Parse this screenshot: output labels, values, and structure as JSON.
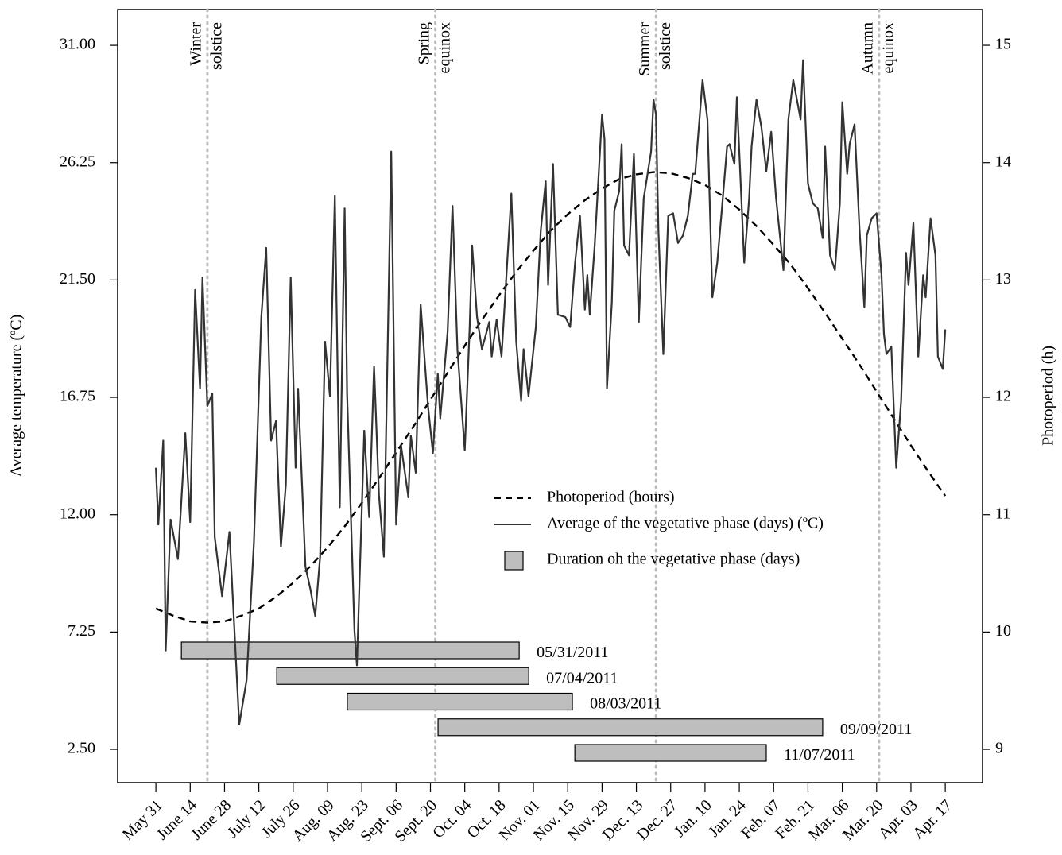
{
  "chart_data": {
    "type": "line",
    "ylabel": "Average temperature (ºC)",
    "y2label": "Photoperiod (h)",
    "xlim": [
      -15.6,
      337.2
    ],
    "xticks": [
      {
        "value": 0,
        "label": "May 31"
      },
      {
        "value": 14,
        "label": "June 14"
      },
      {
        "value": 28,
        "label": "June 28"
      },
      {
        "value": 42,
        "label": "July 12"
      },
      {
        "value": 56,
        "label": "July 26"
      },
      {
        "value": 70,
        "label": "Aug. 09"
      },
      {
        "value": 84,
        "label": "Aug. 23"
      },
      {
        "value": 98,
        "label": "Sept. 06"
      },
      {
        "value": 112,
        "label": "Sept. 20"
      },
      {
        "value": 126,
        "label": "Oct. 04"
      },
      {
        "value": 140,
        "label": "Oct. 18"
      },
      {
        "value": 154,
        "label": "Nov. 01"
      },
      {
        "value": 168,
        "label": "Nov. 15"
      },
      {
        "value": 182,
        "label": "Nov. 29"
      },
      {
        "value": 196,
        "label": "Dec. 13"
      },
      {
        "value": 210,
        "label": "Dec. 27"
      },
      {
        "value": 224,
        "label": "Jan. 10"
      },
      {
        "value": 238,
        "label": "Jan. 24"
      },
      {
        "value": 252,
        "label": "Feb. 07"
      },
      {
        "value": 266,
        "label": "Feb. 21"
      },
      {
        "value": 280,
        "label": "Mar. 06"
      },
      {
        "value": 294,
        "label": "Mar. 20"
      },
      {
        "value": 308,
        "label": "Apr. 03"
      },
      {
        "value": 322,
        "label": "Apr. 17"
      }
    ],
    "ylim": [
      1.15,
      32.45
    ],
    "yticks": [
      {
        "value": 2.5,
        "label": "2.50"
      },
      7.25,
      {
        "value": 12,
        "label": "12.00"
      },
      16.75,
      {
        "value": 21.5,
        "label": "21.50"
      },
      26.25,
      {
        "value": 31,
        "label": "31.00"
      }
    ],
    "y2lim": [
      8.716,
      15.305
    ],
    "y2ticks": [
      9,
      10,
      11,
      12,
      13,
      14,
      15
    ],
    "legend": "center",
    "series": [
      {
        "name": "Photoperiod (hours)",
        "color": "#000000",
        "linestyle": "dashed",
        "axis": "y2",
        "x": [
          0,
          7,
          14,
          21,
          28,
          35,
          42,
          49,
          56,
          63,
          70,
          77,
          84,
          91,
          98,
          105,
          112,
          119,
          126,
          133,
          140,
          147,
          154,
          161,
          168,
          175,
          182,
          189,
          196,
          203,
          210,
          217,
          224,
          231,
          238,
          245,
          252,
          259,
          266,
          273,
          280,
          287,
          294,
          301,
          308,
          315,
          322
        ],
        "values": [
          10.2,
          10.14,
          10.09,
          10.08,
          10.09,
          10.14,
          10.2,
          10.3,
          10.42,
          10.56,
          10.72,
          10.9,
          11.1,
          11.31,
          11.53,
          11.75,
          11.98,
          12.21,
          12.44,
          12.66,
          12.87,
          13.07,
          13.25,
          13.42,
          13.56,
          13.68,
          13.78,
          13.86,
          13.9,
          13.92,
          13.91,
          13.87,
          13.81,
          13.72,
          13.6,
          13.46,
          13.3,
          13.13,
          12.93,
          12.72,
          12.5,
          12.28,
          12.05,
          11.82,
          11.59,
          11.37,
          11.16
        ]
      },
      {
        "name": "Average of the vegetative phase (days) (ºC)",
        "color": "#333333",
        "linestyle": "solid",
        "x": [
          0,
          1,
          3,
          4,
          6,
          9,
          12,
          14,
          16,
          18,
          19,
          21,
          23,
          24,
          27,
          30,
          34,
          37,
          40,
          43,
          45,
          47,
          49,
          51,
          53,
          55,
          57,
          58,
          61,
          63,
          65,
          67,
          69,
          71,
          73,
          75,
          77,
          78,
          81,
          82,
          85,
          87,
          89,
          91,
          93,
          96,
          98,
          100,
          103,
          104,
          106,
          108,
          111,
          113,
          115,
          116,
          119,
          121,
          123,
          126,
          128,
          129,
          131,
          133,
          136,
          137,
          139,
          141,
          145,
          147,
          149,
          150,
          152,
          155,
          157,
          159,
          160,
          162,
          164,
          167,
          169,
          171,
          173,
          175,
          176,
          177,
          179,
          182,
          183,
          184,
          186,
          187,
          189,
          190,
          191,
          193,
          195,
          197,
          199,
          202,
          203,
          204,
          205,
          207,
          209,
          211,
          213,
          215,
          217,
          219,
          220,
          223,
          225,
          227,
          229,
          231,
          233,
          234,
          236,
          237,
          240,
          242,
          243,
          245,
          247,
          249,
          251,
          253,
          256,
          258,
          260,
          263,
          264,
          266,
          268,
          270,
          272,
          273,
          275,
          277,
          279,
          280,
          282,
          283,
          285,
          287,
          289,
          290,
          292,
          294,
          296,
          297,
          298,
          300,
          302,
          304,
          306,
          307,
          309,
          311,
          313,
          314,
          316,
          318,
          319,
          321,
          322
        ],
        "values": [
          13.9,
          11.6,
          15.0,
          6.5,
          11.8,
          10.2,
          15.3,
          11.7,
          21.1,
          17.1,
          21.6,
          16.4,
          16.9,
          11.1,
          8.7,
          11.3,
          3.5,
          5.3,
          10.9,
          20.0,
          22.8,
          15.0,
          15.8,
          10.7,
          13.2,
          21.6,
          13.9,
          17.1,
          9.9,
          9.0,
          7.9,
          10.3,
          19.0,
          16.8,
          24.9,
          12.3,
          24.4,
          16.9,
          7.3,
          5.9,
          15.4,
          11.9,
          18.0,
          12.8,
          10.3,
          26.7,
          11.6,
          14.8,
          12.7,
          15.2,
          13.7,
          20.5,
          16.4,
          14.5,
          17.7,
          15.9,
          19.4,
          24.5,
          18.7,
          14.6,
          19.6,
          22.9,
          20.0,
          18.7,
          19.8,
          18.4,
          19.9,
          18.4,
          25.0,
          19.0,
          16.6,
          18.7,
          16.8,
          19.6,
          23.5,
          25.5,
          21.3,
          26.2,
          20.1,
          20.0,
          19.6,
          22.2,
          24.1,
          20.3,
          21.7,
          20.1,
          22.9,
          28.2,
          27.2,
          17.1,
          20.6,
          24.3,
          25.1,
          27.0,
          22.9,
          22.5,
          26.6,
          19.8,
          24.8,
          26.7,
          28.8,
          28.2,
          23.5,
          18.5,
          24.1,
          24.2,
          23.0,
          23.3,
          24.1,
          25.8,
          25.8,
          29.6,
          28.0,
          20.8,
          22.2,
          24.5,
          26.9,
          27.0,
          26.2,
          28.9,
          22.2,
          24.8,
          26.9,
          28.8,
          27.7,
          25.9,
          27.5,
          24.8,
          21.9,
          28.0,
          29.6,
          28.0,
          30.4,
          25.4,
          24.6,
          24.4,
          23.2,
          26.9,
          22.5,
          21.9,
          24.6,
          28.7,
          25.8,
          27.0,
          27.8,
          23.6,
          20.4,
          23.3,
          24.0,
          24.2,
          21.7,
          19.3,
          18.5,
          18.8,
          13.9,
          16.6,
          22.6,
          21.3,
          23.8,
          18.4,
          21.7,
          20.8,
          24.0,
          22.5,
          18.4,
          17.9,
          19.5
        ]
      }
    ],
    "bars": {
      "name": "Duration oh the vegetative phase (days)",
      "color": "#bebebe",
      "items": [
        {
          "label": "05/31/2011",
          "start": 10.4,
          "end": 148.2
        },
        {
          "label": "07/04/2011",
          "start": 49.3,
          "end": 152.1
        },
        {
          "label": "08/03/2011",
          "start": 78.1,
          "end": 169.9
        },
        {
          "label": "09/09/2011",
          "start": 115.1,
          "end": 272.0
        },
        {
          "label": "11/07/2011",
          "start": 170.9,
          "end": 249.0
        }
      ]
    },
    "annotations": [
      {
        "x": 21,
        "text": [
          "Winter",
          "solstice"
        ]
      },
      {
        "x": 114,
        "text": [
          "Spring",
          "equinox"
        ]
      },
      {
        "x": 204,
        "text": [
          "Summer",
          "solstice"
        ]
      },
      {
        "x": 295,
        "text": [
          "Autumn",
          "equinox"
        ]
      }
    ]
  }
}
